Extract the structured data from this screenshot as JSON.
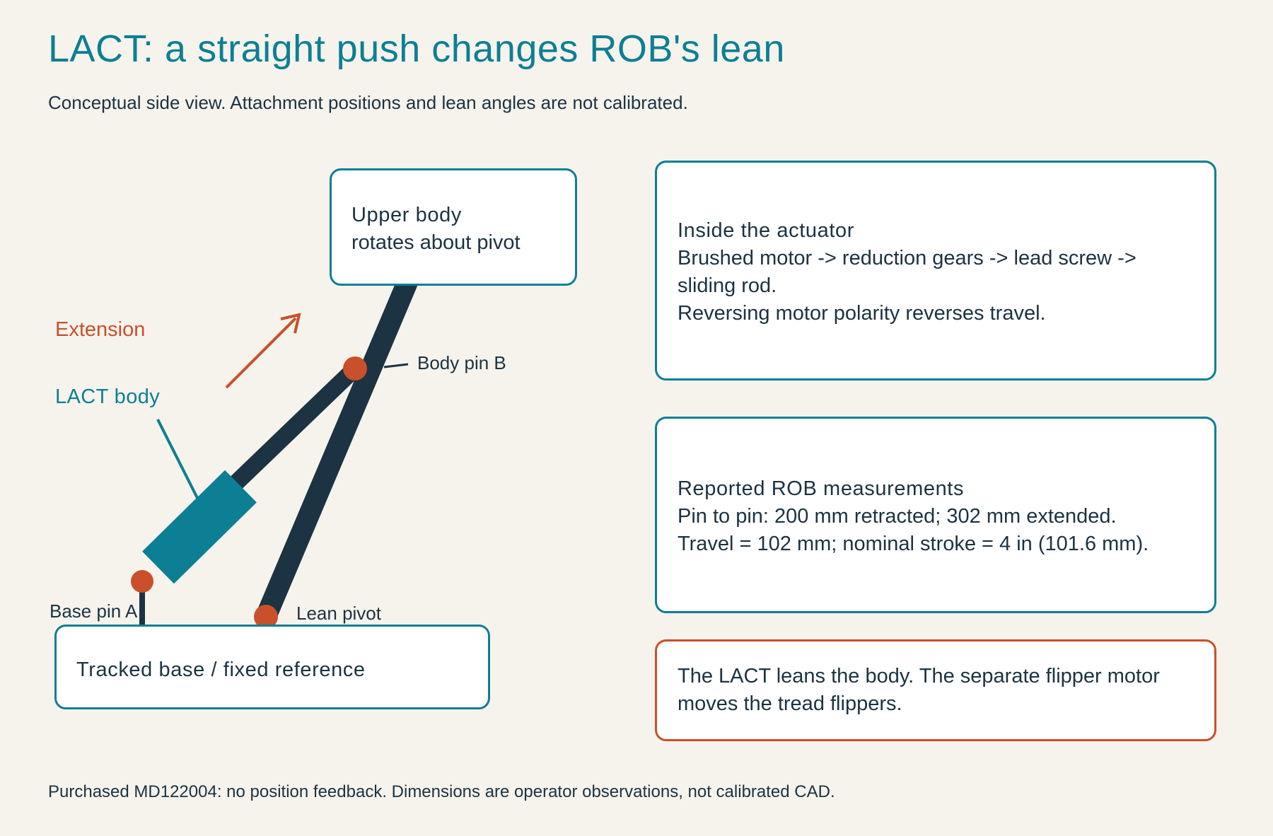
{
  "header": {
    "title": "LACT: a straight push changes ROB's lean",
    "subtitle": "Conceptual side view. Attachment positions and lean angles are not calibrated."
  },
  "diagram": {
    "labels": {
      "upper_body_line1": "Upper body",
      "upper_body_line2": "rotates about pivot",
      "extension": "Extension",
      "lact_body": "LACT body",
      "body_pin_b": "Body pin B",
      "base_pin_a": "Base pin A",
      "lean_pivot": "Lean pivot",
      "tracked_base": "Tracked base / fixed reference"
    },
    "colors": {
      "teal": "#0c7f94",
      "dark": "#1b3342",
      "orange": "#c9502a",
      "background": "#f6f3ec"
    }
  },
  "notes": {
    "actuator": {
      "heading": "Inside the actuator",
      "line1": "Brushed motor -> reduction gears -> lead screw ->",
      "line2": "sliding rod.",
      "line3": "Reversing motor polarity reverses travel."
    },
    "measurements": {
      "heading": "Reported ROB measurements",
      "line1": "Pin to pin: 200 mm retracted; 302 mm extended.",
      "line2": "Travel = 102 mm; nominal stroke = 4 in (101.6 mm)."
    },
    "flipper": {
      "line1": "The LACT leans the body. The separate flipper motor",
      "line2": "moves the tread flippers."
    }
  },
  "footer": {
    "text": "Purchased MD122004: no position feedback. Dimensions are operator observations, not calibrated CAD."
  }
}
